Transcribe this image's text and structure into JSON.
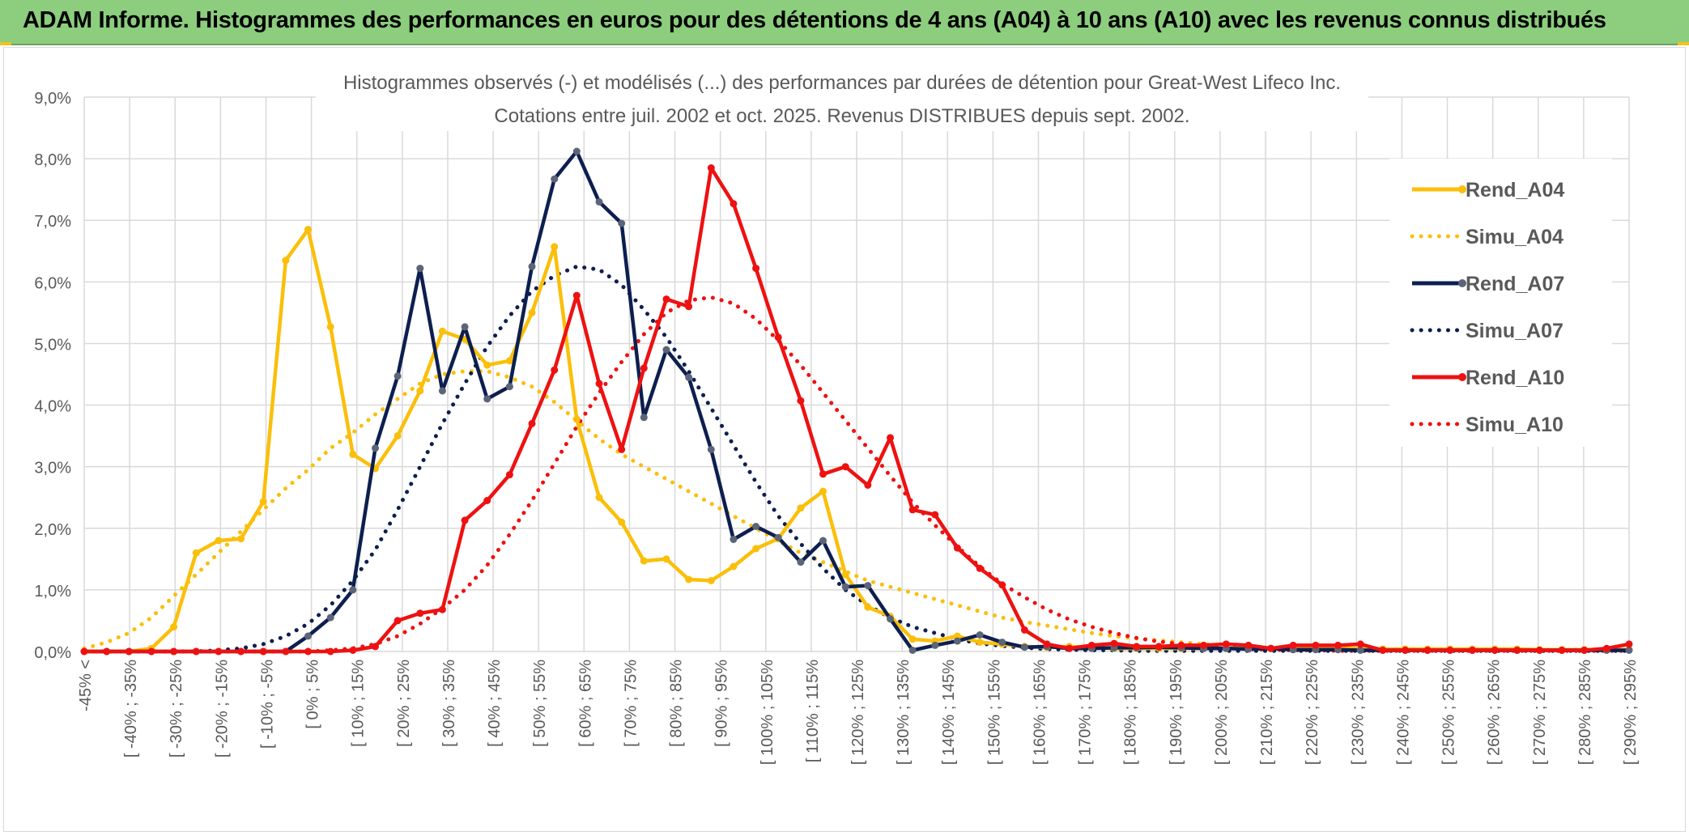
{
  "banner": {
    "title": "ADAM Informe. Histogrammes des performances en euros pour des détentions de 4 ans (A04) à 10 ans (A10) avec les revenus connus distribués"
  },
  "colors": {
    "banner_bg": "#8ccd7e",
    "A04": "#fbbf0a",
    "A07": "#0d1f4f",
    "A07_marker": "#5b6577",
    "A10": "#ee1111",
    "grid": "#d9d9d9"
  },
  "chart_data": {
    "type": "line",
    "title": "Histogrammes observés (-) et modélisés (...) des performances par durées de détention pour Great-West Lifeco Inc.",
    "subtitle": "Cotations entre juil. 2002 et oct. 2025. Revenus DISTRIBUES depuis sept. 2002.",
    "xlabel": "",
    "ylabel": "",
    "ylim": [
      0,
      9
    ],
    "yticks": [
      "0,0%",
      "1,0%",
      "2,0%",
      "3,0%",
      "4,0%",
      "5,0%",
      "6,0%",
      "7,0%",
      "8,0%",
      "9,0%"
    ],
    "grid": true,
    "legend_position": "right",
    "x_labels": [
      "-45% <",
      "[ -40% ; -35%",
      "[ -30% ; -25%",
      "[ -20% ; -15%",
      "[ -10% ; -5%",
      "[ 0% ; 5%",
      "[ 10% ; 15%",
      "[ 20% ; 25%",
      "[ 30% ; 35%",
      "[ 40% ; 45%",
      "[ 50% ; 55%",
      "[ 60% ; 65%",
      "[ 70% ; 75%",
      "[ 80% ; 85%",
      "[ 90% ; 95%",
      "[ 100% ; 105%",
      "[ 110% ; 115%",
      "[ 120% ; 125%",
      "[ 130% ; 135%",
      "[ 140% ; 145%",
      "[ 150% ; 155%",
      "[ 160% ; 165%",
      "[ 170% ; 175%",
      "[ 180% ; 185%",
      "[ 190% ; 195%",
      "[ 200% ; 205%",
      "[ 210% ; 215%",
      "[ 220% ; 225%",
      "[ 230% ; 235%",
      "[ 240% ; 245%",
      "[ 250% ; 255%",
      "[ 260% ; 265%",
      "[ 270% ; 275%",
      "[ 280% ; 285%",
      "[ 290% ; 295%"
    ],
    "series": [
      {
        "name": "Rend_A04",
        "style": "solid",
        "color": "#fbbf0a",
        "values": [
          0,
          0,
          0,
          0.05,
          0.4,
          1.6,
          1.8,
          1.83,
          2.43,
          6.35,
          6.85,
          5.27,
          3.2,
          2.97,
          3.5,
          4.23,
          5.2,
          5.07,
          4.65,
          4.72,
          5.5,
          6.57,
          3.77,
          2.5,
          2.1,
          1.47,
          1.5,
          1.17,
          1.15,
          1.38,
          1.67,
          1.83,
          2.33,
          2.6,
          1.25,
          0.72,
          0.57,
          0.2,
          0.17,
          0.25,
          0.15,
          0.12,
          0.08,
          0.07,
          0.08,
          0.06,
          0.05,
          0.05,
          0.05,
          0.05,
          0.05,
          0.05,
          0.05,
          0.05,
          0.05,
          0.05,
          0.05,
          0.05,
          0.04,
          0.04,
          0.04,
          0.04,
          0.04,
          0.04,
          0.04,
          0.03,
          0.03,
          0.03,
          0.03,
          0.03
        ]
      },
      {
        "name": "Simu_A04",
        "style": "dotted",
        "color": "#fbbf0a",
        "values": [
          0.05,
          0.15,
          0.3,
          0.55,
          0.9,
          1.25,
          1.6,
          1.95,
          2.3,
          2.65,
          2.95,
          3.3,
          3.55,
          3.85,
          4.1,
          4.35,
          4.5,
          4.55,
          4.55,
          4.45,
          4.3,
          4.05,
          3.75,
          3.45,
          3.2,
          3.0,
          2.8,
          2.6,
          2.4,
          2.2,
          2.0,
          1.8,
          1.6,
          1.45,
          1.3,
          1.15,
          1.05,
          0.95,
          0.85,
          0.75,
          0.65,
          0.55,
          0.48,
          0.42,
          0.36,
          0.3,
          0.25,
          0.21,
          0.18,
          0.15,
          0.12,
          0.1,
          0.08,
          0.06,
          0.05,
          0.04,
          0.03,
          0.03,
          0.02,
          0.02,
          0.02,
          0.02,
          0.02,
          0.02,
          0.02,
          0.02,
          0.02,
          0.02,
          0.02,
          0.02
        ]
      },
      {
        "name": "Rend_A07",
        "style": "solid",
        "color": "#0d1f4f",
        "values": [
          0,
          0,
          0,
          0,
          0,
          0,
          0,
          0,
          0,
          0,
          0.25,
          0.55,
          1.0,
          3.3,
          4.47,
          6.22,
          4.23,
          5.27,
          4.1,
          4.3,
          6.25,
          7.67,
          8.12,
          7.3,
          6.95,
          3.8,
          4.9,
          4.45,
          3.28,
          1.82,
          2.03,
          1.85,
          1.45,
          1.8,
          1.05,
          1.07,
          0.53,
          0.02,
          0.1,
          0.17,
          0.27,
          0.15,
          0.07,
          0.08,
          0.05,
          0.05,
          0.06,
          0.06,
          0.07,
          0.06,
          0.05,
          0.05,
          0.04,
          0.05,
          0.03,
          0.03,
          0.03,
          0.02,
          0.02,
          0.02,
          0.02,
          0.02,
          0.02,
          0.02,
          0.02,
          0.02,
          0.02,
          0.02,
          0.02,
          0.02
        ]
      },
      {
        "name": "Simu_A07",
        "style": "dotted",
        "color": "#0d1f4f",
        "values": [
          0,
          0,
          0,
          0,
          0,
          0,
          0.02,
          0.05,
          0.12,
          0.25,
          0.45,
          0.75,
          1.15,
          1.65,
          2.3,
          3.0,
          3.7,
          4.35,
          4.95,
          5.45,
          5.85,
          6.1,
          6.25,
          6.2,
          5.95,
          5.55,
          5.1,
          4.55,
          3.95,
          3.35,
          2.75,
          2.2,
          1.75,
          1.35,
          1.0,
          0.75,
          0.55,
          0.4,
          0.3,
          0.2,
          0.13,
          0.09,
          0.06,
          0.04,
          0.03,
          0.02,
          0.02,
          0.01,
          0.01,
          0.01,
          0.01,
          0.01,
          0.01,
          0.01,
          0.01,
          0.01,
          0.01,
          0.01,
          0.01,
          0.01,
          0.01,
          0.01,
          0.01,
          0.01,
          0.01,
          0.01,
          0.01,
          0.01,
          0.01,
          0.01
        ]
      },
      {
        "name": "Rend_A10",
        "style": "solid",
        "color": "#ee1111",
        "values": [
          0,
          0,
          0,
          0,
          0,
          0,
          0,
          0,
          0,
          0,
          0,
          0,
          0.02,
          0.08,
          0.5,
          0.62,
          0.68,
          2.13,
          2.45,
          2.87,
          3.7,
          4.57,
          5.78,
          4.35,
          3.28,
          4.6,
          5.72,
          5.6,
          7.85,
          7.27,
          6.22,
          5.1,
          4.07,
          2.88,
          3.0,
          2.7,
          3.47,
          2.3,
          2.22,
          1.68,
          1.35,
          1.08,
          0.35,
          0.12,
          0.05,
          0.1,
          0.13,
          0.08,
          0.08,
          0.1,
          0.1,
          0.12,
          0.1,
          0.05,
          0.1,
          0.1,
          0.1,
          0.12,
          0.02,
          0.02,
          0.02,
          0.02,
          0.02,
          0.02,
          0.02,
          0.02,
          0.02,
          0.02,
          0.05,
          0.12
        ]
      },
      {
        "name": "Simu_A10",
        "style": "dotted",
        "color": "#ee1111",
        "values": [
          0,
          0,
          0,
          0,
          0,
          0,
          0,
          0,
          0,
          0,
          0,
          0.02,
          0.05,
          0.12,
          0.25,
          0.45,
          0.7,
          1.0,
          1.4,
          1.9,
          2.45,
          3.05,
          3.65,
          4.2,
          4.7,
          5.15,
          5.5,
          5.7,
          5.75,
          5.65,
          5.4,
          5.05,
          4.65,
          4.2,
          3.75,
          3.3,
          2.85,
          2.42,
          2.05,
          1.7,
          1.38,
          1.1,
          0.88,
          0.68,
          0.52,
          0.4,
          0.3,
          0.22,
          0.16,
          0.12,
          0.08,
          0.06,
          0.04,
          0.03,
          0.02,
          0.02,
          0.01,
          0.01,
          0.01,
          0.01,
          0.01,
          0.01,
          0.01,
          0.01,
          0.01,
          0.01,
          0.01,
          0.01,
          0.01,
          0.01
        ]
      }
    ]
  }
}
